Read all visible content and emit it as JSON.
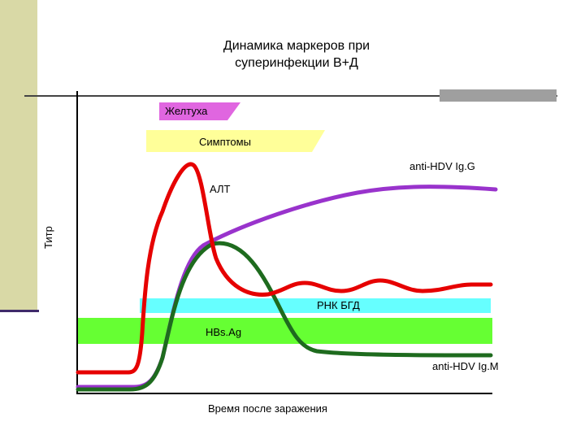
{
  "title_lines": [
    "Динамика маркеров при",
    "суперинфекции В+Д"
  ],
  "axes": {
    "y_label": "Титр",
    "x_label": "Время после заражения"
  },
  "labels": {
    "jaundice": "Желтуха",
    "symptoms": "Симптомы",
    "igg": "anti-HDV Ig.G",
    "alt": "АЛТ",
    "rna": "РНК БГД",
    "hbsag": "HBs.Ag",
    "igm": "anti-HDV Ig.M"
  },
  "colors": {
    "jaundice_band": "#e066e0",
    "symptoms_band": "#ffff99",
    "rna_band": "#66ffff",
    "hbsag_band": "#66ff33",
    "alt_curve": "#e60000",
    "igg_curve": "#9933cc",
    "igm_curve": "#1e6b1e",
    "left_bar": "#d9d9a6"
  }
}
